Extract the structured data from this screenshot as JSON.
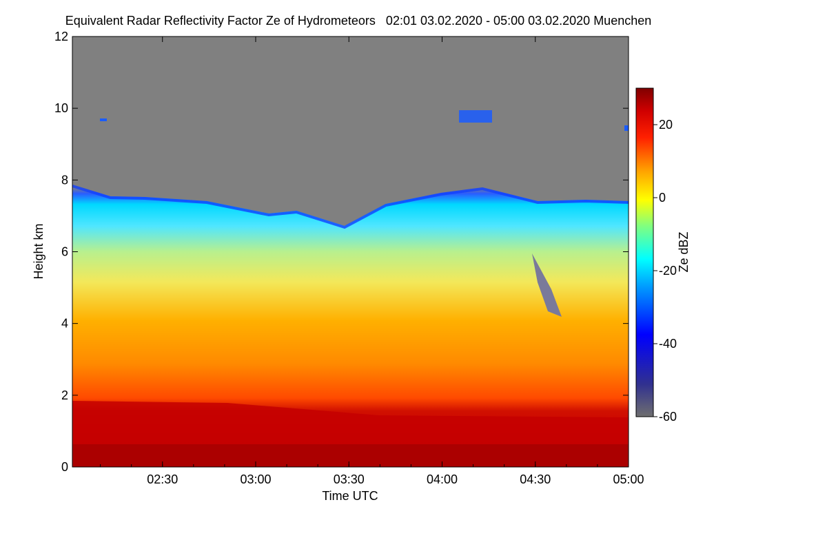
{
  "chart_data": {
    "type": "heatmap",
    "title": "Equivalent Radar Reflectivity Factor Ze of Hydrometeors   02:01 03.02.2020 - 05:00 03.02.2020 Muenchen",
    "xlabel": "Time UTC",
    "ylabel": "Height km",
    "xlim": [
      "02:01",
      "05:00"
    ],
    "ylim": [
      0,
      12
    ],
    "xticks": [
      "02:30",
      "03:00",
      "03:30",
      "04:00",
      "04:30",
      "05:00"
    ],
    "yticks": [
      0,
      2,
      4,
      6,
      8,
      10,
      12
    ],
    "colorbar": {
      "label": "Ze dBZ",
      "range": [
        -60,
        30
      ],
      "ticks": [
        -60,
        -40,
        -20,
        0,
        20
      ]
    },
    "background_color": "#808080",
    "features": {
      "cloud_top_km": [
        7.8,
        7.6,
        7.3,
        7.1,
        7.4,
        7.0,
        7.5,
        7.8,
        7.5,
        7.3
      ],
      "high_red_layer_top_km_start": 1.9,
      "high_red_layer_top_km_end": 1.4,
      "isolated_echoes_km": [
        9.7,
        9.8,
        9.5
      ]
    }
  }
}
